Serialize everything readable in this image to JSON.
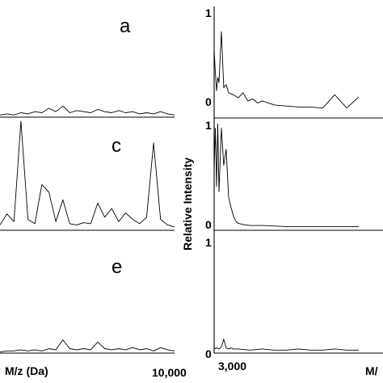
{
  "chart_data": [
    {
      "type": "line",
      "panel_label": "a",
      "x": [
        200,
        600,
        1000,
        1400,
        1800,
        2200,
        2600,
        3000,
        3400,
        3800,
        4200,
        4600,
        5000,
        5400,
        5800,
        6200,
        6600,
        7000,
        7400,
        7800,
        8200,
        8600,
        9000,
        9400,
        9800,
        10200
      ],
      "y": [
        0.02,
        0.03,
        0.02,
        0.04,
        0.03,
        0.05,
        0.04,
        0.08,
        0.05,
        0.1,
        0.04,
        0.06,
        0.05,
        0.04,
        0.07,
        0.05,
        0.04,
        0.06,
        0.04,
        0.05,
        0.03,
        0.04,
        0.03,
        0.05,
        0.03,
        0.02
      ]
    },
    {
      "type": "line",
      "panel_label": "c",
      "x": [
        200,
        600,
        1000,
        1400,
        1800,
        2200,
        2600,
        3000,
        3400,
        3800,
        4200,
        4600,
        5000,
        5400,
        5800,
        6200,
        6600,
        7000,
        7400,
        7800,
        8200,
        8600,
        9000,
        9400,
        9800,
        10200
      ],
      "y": [
        0.05,
        0.15,
        0.08,
        1.0,
        0.1,
        0.06,
        0.42,
        0.35,
        0.08,
        0.28,
        0.06,
        0.05,
        0.07,
        0.06,
        0.25,
        0.12,
        0.2,
        0.08,
        0.16,
        0.1,
        0.06,
        0.12,
        0.8,
        0.1,
        0.05,
        0.03
      ]
    },
    {
      "type": "line",
      "panel_label": "e",
      "x": [
        200,
        600,
        1000,
        1400,
        1800,
        2200,
        2600,
        3000,
        3400,
        3800,
        4200,
        4600,
        5000,
        5400,
        5800,
        6200,
        6600,
        7000,
        7400,
        7800,
        8200,
        8600,
        9000,
        9400,
        9800,
        10200
      ],
      "y": [
        0.01,
        0.02,
        0.02,
        0.03,
        0.02,
        0.03,
        0.02,
        0.04,
        0.03,
        0.12,
        0.04,
        0.03,
        0.04,
        0.03,
        0.1,
        0.04,
        0.03,
        0.04,
        0.03,
        0.05,
        0.03,
        0.04,
        0.02,
        0.05,
        0.03,
        0.02
      ],
      "xtick_labels": [
        "M/z (Da)",
        "10,000"
      ]
    },
    {
      "type": "line",
      "ylim": [
        0,
        1
      ],
      "ytick_labels": [
        "0",
        "1"
      ],
      "x": [
        3000,
        3050,
        3100,
        3150,
        3200,
        3300,
        3400,
        3500,
        3600,
        3800,
        4000,
        4200,
        4400,
        4600,
        4800,
        5000,
        5500,
        6000,
        6500,
        7000,
        7500,
        8000,
        8500,
        9000
      ],
      "y": [
        0.62,
        0.4,
        0.22,
        0.35,
        0.3,
        0.8,
        0.25,
        0.28,
        0.2,
        0.18,
        0.15,
        0.2,
        0.12,
        0.14,
        0.1,
        0.12,
        0.08,
        0.07,
        0.06,
        0.06,
        0.05,
        0.18,
        0.05,
        0.16
      ]
    },
    {
      "type": "line",
      "ylim": [
        0,
        1
      ],
      "ytick_labels": [
        "0",
        "1"
      ],
      "x": [
        3000,
        3050,
        3100,
        3150,
        3200,
        3300,
        3400,
        3500,
        3600,
        3700,
        3800,
        3900,
        4000,
        4200,
        4500,
        5000,
        6000,
        7000,
        8000,
        9000
      ],
      "y": [
        0.55,
        0.95,
        0.4,
        0.99,
        0.35,
        0.95,
        0.6,
        0.75,
        0.3,
        0.2,
        0.12,
        0.07,
        0.05,
        0.04,
        0.03,
        0.03,
        0.02,
        0.02,
        0.02,
        0.02
      ]
    },
    {
      "type": "line",
      "ylim": [
        0,
        1
      ],
      "ytick_labels": [
        "0",
        "1"
      ],
      "ylabel": "Relative Intensity",
      "x": [
        3000,
        3100,
        3200,
        3300,
        3400,
        3500,
        3600,
        3700,
        3800,
        4000,
        4500,
        5000,
        5500,
        6000,
        6500,
        7000,
        7500,
        8000,
        8500,
        9000
      ],
      "y": [
        0.03,
        0.04,
        0.03,
        0.05,
        0.12,
        0.04,
        0.03,
        0.04,
        0.03,
        0.03,
        0.02,
        0.03,
        0.02,
        0.02,
        0.03,
        0.02,
        0.02,
        0.03,
        0.02,
        0.02
      ],
      "xtick_labels": [
        "3,000",
        "M/"
      ]
    }
  ]
}
